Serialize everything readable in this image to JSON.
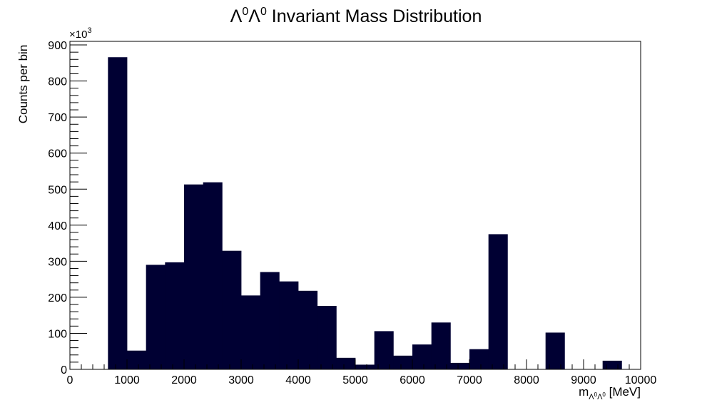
{
  "chart_data": {
    "type": "bar",
    "title": {
      "prefix": "Λ",
      "sup1": "0",
      "middle": "Λ",
      "sup2": "0",
      "rest": " Invariant Mass Distribution"
    },
    "xlabel": {
      "main": "m",
      "sub": "Λ",
      "sub_sup1": "0",
      "sub2": "Λ",
      "sub_sup2": "0",
      "unit": " [MeV]"
    },
    "ylabel": "Counts per bin",
    "y_exponent": {
      "base": "×10",
      "power": "3"
    },
    "xlim": [
      0,
      10000
    ],
    "ylim": [
      0,
      910
    ],
    "x_ticks": [
      0,
      1000,
      2000,
      3000,
      4000,
      5000,
      6000,
      7000,
      8000,
      9000,
      10000
    ],
    "y_ticks": [
      0,
      100,
      200,
      300,
      400,
      500,
      600,
      700,
      800,
      900
    ],
    "bin_width": 333.33,
    "bins_start": [
      666.67,
      1000,
      1333.33,
      1666.67,
      2000,
      2333.33,
      2666.67,
      3000,
      3333.33,
      3666.67,
      4000,
      4333.33,
      4666.67,
      5000,
      5333.33,
      5666.67,
      6000,
      6333.33,
      6666.67,
      7000,
      7333.33,
      7666.67,
      8000,
      8333.33,
      8666.67,
      9000,
      9333.33
    ],
    "values": [
      866,
      52,
      290,
      297,
      513,
      519,
      329,
      205,
      270,
      244,
      218,
      176,
      32,
      13,
      106,
      38,
      69,
      130,
      18,
      56,
      375,
      0,
      0,
      102,
      0,
      0,
      24
    ],
    "bar_color": "#000033",
    "grid": false,
    "legend": "none"
  }
}
